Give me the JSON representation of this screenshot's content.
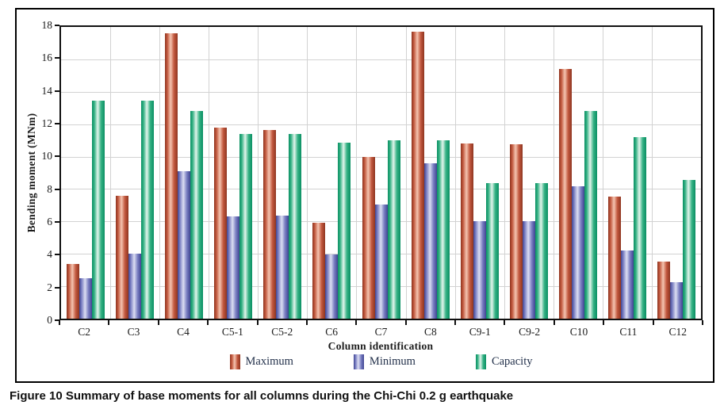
{
  "figure": {
    "caption_label": "Figure 10",
    "caption_text": " Summary of base moments for all columns during the Chi-Chi 0.2 g earthquake"
  },
  "chart_data": {
    "type": "bar",
    "title": "",
    "xlabel": "Column identification",
    "ylabel": "Bending moment (MNm)",
    "ylim": [
      0,
      18
    ],
    "ytick_step": 2,
    "grid": true,
    "legend_position": "bottom",
    "categories": [
      "C2",
      "C3",
      "C4",
      "C5-1",
      "C5-2",
      "C6",
      "C7",
      "C8",
      "C9-1",
      "C9-2",
      "C10",
      "C11",
      "C12"
    ],
    "series": [
      {
        "name": "Maximum",
        "color_edge": "#8e3520",
        "color_mid": "#c2583e",
        "color_light": "#f4c4b0",
        "values": [
          3.4,
          7.6,
          17.6,
          11.8,
          11.65,
          5.9,
          10.0,
          17.7,
          10.8,
          10.75,
          15.4,
          7.55,
          3.5
        ]
      },
      {
        "name": "Minimum",
        "color_edge": "#3f4492",
        "color_mid": "#7a7fc2",
        "color_light": "#dcdef2",
        "values": [
          2.5,
          4.0,
          9.1,
          6.3,
          6.35,
          3.95,
          7.05,
          9.6,
          6.0,
          6.0,
          8.15,
          4.2,
          2.25
        ]
      },
      {
        "name": "Capacity",
        "color_edge": "#0a8f63",
        "color_mid": "#34b183",
        "color_light": "#e2f5ec",
        "values": [
          13.45,
          13.45,
          12.8,
          11.4,
          11.4,
          10.85,
          11.0,
          11.0,
          8.35,
          8.35,
          12.8,
          11.2,
          8.55
        ]
      }
    ]
  }
}
